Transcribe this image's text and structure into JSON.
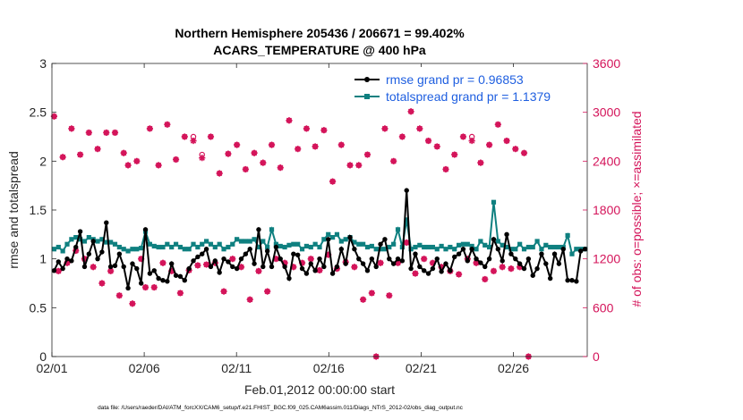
{
  "chart_data": {
    "type": "line",
    "title_line1": "Northern Hemisphere 205436 / 206671 = 99.402%",
    "title_line2": "ACARS_TEMPERATURE @ 400 hPa",
    "xlabel": "Feb.01,2012 00:00:00 start",
    "ylabel_left": "rmse and totalspread",
    "ylabel_right": "# of obs: o=possible; ×=assimilated",
    "footer": "data file: /Users/raeder/DAI/ATM_forcXX/CAM6_setup/f.e21.FHIST_BGC.f09_025.CAM6assim.011/Diags_NTrS_2012-02/obs_diag_output.nc",
    "xlim": [
      0,
      29
    ],
    "x_ticks": [
      {
        "x": 0,
        "label": "02/01"
      },
      {
        "x": 5,
        "label": "02/06"
      },
      {
        "x": 10,
        "label": "02/11"
      },
      {
        "x": 15,
        "label": "02/16"
      },
      {
        "x": 20,
        "label": "02/21"
      },
      {
        "x": 25,
        "label": "02/26"
      }
    ],
    "ylim_left": [
      0,
      3
    ],
    "y_ticks_left": [
      "0",
      "0.5",
      "1",
      "1.5",
      "2",
      "2.5",
      "3"
    ],
    "ylim_right": [
      0,
      3600
    ],
    "y_ticks_right": [
      "0",
      "600",
      "1200",
      "1800",
      "2400",
      "3000",
      "3600"
    ],
    "grid": false,
    "legend_position": "top-right",
    "colors": {
      "rmse": "#000000",
      "spread": "#0f8080",
      "obs": "#d4145a",
      "legend_text": "#1f5fe0"
    },
    "series": [
      {
        "name": "rmse grand pr = 0.96853",
        "color": "#000000",
        "values": [
          0.88,
          0.97,
          0.9,
          1.0,
          0.98,
          1.12,
          1.28,
          0.92,
          1.05,
          1.18,
          1.0,
          1.07,
          1.37,
          0.92,
          0.93,
          1.05,
          0.92,
          0.7,
          0.95,
          0.9,
          0.75,
          1.3,
          0.85,
          0.88,
          0.8,
          0.78,
          0.77,
          0.95,
          0.83,
          0.82,
          0.78,
          0.9,
          0.98,
          1.02,
          1.05,
          1.1,
          0.92,
          0.98,
          0.86,
          1.0,
          0.97,
          0.92,
          0.9,
          1.0,
          1.05,
          1.1,
          0.95,
          1.3,
          0.92,
          1.08,
          0.92,
          1.12,
          1.0,
          0.92,
          0.8,
          1.05,
          1.04,
          0.9,
          0.85,
          0.95,
          0.88,
          1.0,
          0.92,
          1.2,
          0.85,
          0.92,
          1.1,
          0.95,
          1.22,
          1.1,
          1.0,
          0.95,
          0.88,
          1.0,
          0.92,
          1.15,
          1.2,
          1.0,
          0.95,
          1.0,
          0.98,
          1.7,
          0.9,
          1.05,
          0.92,
          0.88,
          0.85,
          0.9,
          1.0,
          0.87,
          0.95,
          0.88,
          1.02,
          1.05,
          1.1,
          0.98,
          1.1,
          1.0,
          0.96,
          0.92,
          1.0,
          1.2,
          1.1,
          0.98,
          1.25,
          1.05,
          1.0,
          0.95,
          0.9,
          1.0,
          0.83,
          0.9,
          1.05,
          0.95,
          0.8,
          1.05,
          0.95,
          1.1,
          0.78,
          0.78,
          0.77,
          1.08,
          1.1
        ]
      },
      {
        "name": "totalspread grand pr = 1.1379",
        "color": "#0f8080",
        "values": [
          1.1,
          1.12,
          1.08,
          1.15,
          1.2,
          1.22,
          1.2,
          1.18,
          1.22,
          1.2,
          1.18,
          1.2,
          1.17,
          1.17,
          1.15,
          1.12,
          1.1,
          1.08,
          1.1,
          1.1,
          1.11,
          1.28,
          1.15,
          1.13,
          1.12,
          1.12,
          1.15,
          1.12,
          1.15,
          1.12,
          1.1,
          1.1,
          1.15,
          1.12,
          1.15,
          1.18,
          1.15,
          1.12,
          1.15,
          1.1,
          1.12,
          1.15,
          1.2,
          1.18,
          1.18,
          1.18,
          1.2,
          1.12,
          1.18,
          1.12,
          1.3,
          1.15,
          1.13,
          1.12,
          1.14,
          1.15,
          1.15,
          1.1,
          1.13,
          1.12,
          1.15,
          1.12,
          1.2,
          1.25,
          1.22,
          1.25,
          1.18,
          1.2,
          1.22,
          1.17,
          1.15,
          1.15,
          1.12,
          1.13,
          1.1,
          1.1,
          1.1,
          1.12,
          1.15,
          1.3,
          1.12,
          1.4,
          1.1,
          1.12,
          1.14,
          1.12,
          1.12,
          1.12,
          1.1,
          1.13,
          1.1,
          1.12,
          1.1,
          1.14,
          1.15,
          1.15,
          1.13,
          1.1,
          1.18,
          1.14,
          1.12,
          1.58,
          1.18,
          1.14,
          1.12,
          1.1,
          1.1,
          1.15,
          1.1,
          1.12,
          1.12,
          1.18,
          1.1,
          1.14,
          1.12,
          1.12,
          1.12,
          1.12,
          1.24,
          1.05,
          1.1,
          1.1,
          1.1
        ]
      },
      {
        "name": "obs_possible",
        "color": "#d4145a",
        "values": [
          2950,
          1050,
          2450,
          1150,
          2800,
          1300,
          2480,
          1200,
          2750,
          1100,
          2550,
          900,
          2750,
          1050,
          2750,
          750,
          2500,
          2350,
          650,
          2400,
          1200,
          850,
          2800,
          850,
          2350,
          1150,
          2850,
          1050,
          2420,
          780,
          2700,
          1060,
          2700,
          1120,
          2480,
          1130,
          2700,
          1150,
          2250,
          800,
          2490,
          1200,
          2600,
          1100,
          2300,
          700,
          2500,
          1050,
          2380,
          800,
          2600,
          1200,
          2320,
          1150,
          2900,
          1100,
          2550,
          1150,
          2800,
          1200,
          2580,
          1060,
          2780,
          1250,
          2150,
          1080,
          2600,
          1160,
          2350,
          1100,
          2350,
          700,
          2480,
          780,
          0,
          1150,
          2800,
          750,
          2400,
          1150,
          2700,
          1400,
          3010,
          1020,
          2800,
          1200,
          2650,
          1150,
          2580,
          1100,
          2300,
          1050,
          2480,
          1010,
          2700,
          1200,
          2700,
          1150,
          2380,
          950,
          2600,
          1050,
          2850,
          1100,
          2650,
          1080,
          2550,
          1100,
          2500,
          0
        ]
      },
      {
        "name": "obs_assimilated",
        "color": "#d4145a",
        "values": [
          2950,
          1050,
          2450,
          1150,
          2800,
          1300,
          2480,
          1200,
          2750,
          1100,
          2550,
          900,
          2750,
          1050,
          2750,
          750,
          2500,
          2350,
          650,
          2400,
          1200,
          850,
          2800,
          850,
          2350,
          1150,
          2850,
          1050,
          2420,
          780,
          2700,
          1060,
          2650,
          1120,
          2440,
          1130,
          2700,
          1150,
          2250,
          800,
          2490,
          1200,
          2600,
          1100,
          2300,
          700,
          2500,
          1050,
          2380,
          800,
          2600,
          1200,
          2320,
          1150,
          2900,
          1100,
          2550,
          1150,
          2800,
          1200,
          2580,
          1060,
          2780,
          1250,
          2150,
          1080,
          2600,
          1160,
          2350,
          1100,
          2350,
          700,
          2480,
          780,
          0,
          1150,
          2800,
          750,
          2400,
          1150,
          2700,
          1400,
          3010,
          1020,
          2800,
          1200,
          2650,
          1150,
          2580,
          1100,
          2300,
          1050,
          2480,
          1010,
          2700,
          1200,
          2650,
          1150,
          2380,
          950,
          2600,
          1050,
          2850,
          1100,
          2650,
          1080,
          2550,
          1100,
          2500,
          0
        ]
      }
    ]
  }
}
